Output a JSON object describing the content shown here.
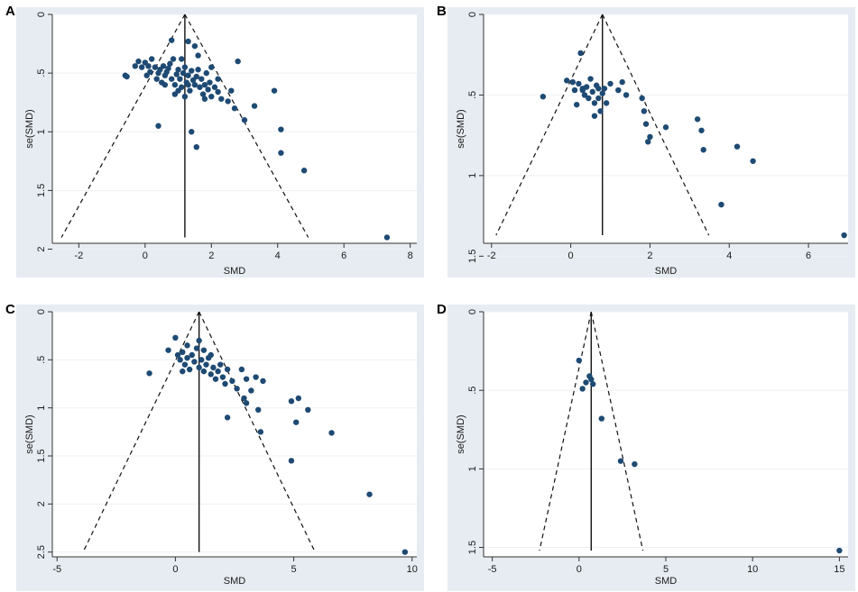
{
  "chart_data": [
    {
      "type": "scatter",
      "panel": "A",
      "xlabel": "SMD",
      "ylabel": "se(SMD)",
      "xlim": [
        -2.8,
        8.2
      ],
      "ylim": [
        0,
        1.95
      ],
      "y_reversed": true,
      "xticks": [
        -2,
        0,
        2,
        4,
        6,
        8
      ],
      "yticks": [
        0,
        0.5,
        1,
        1.5,
        2
      ],
      "ytick_labels": [
        "0",
        ".5",
        "1",
        "1.5",
        "2"
      ],
      "pooled_estimate": 1.2,
      "funnel_max_se": 1.9,
      "points": [
        [
          -0.6,
          0.52
        ],
        [
          -0.55,
          0.53
        ],
        [
          -0.3,
          0.44
        ],
        [
          -0.2,
          0.4
        ],
        [
          -0.1,
          0.45
        ],
        [
          0.0,
          0.41
        ],
        [
          0.05,
          0.52
        ],
        [
          0.1,
          0.44
        ],
        [
          0.15,
          0.49
        ],
        [
          0.2,
          0.38
        ],
        [
          0.3,
          0.45
        ],
        [
          0.35,
          0.55
        ],
        [
          0.4,
          0.5
        ],
        [
          0.45,
          0.47
        ],
        [
          0.5,
          0.58
        ],
        [
          0.55,
          0.44
        ],
        [
          0.6,
          0.52
        ],
        [
          0.65,
          0.49
        ],
        [
          0.7,
          0.46
        ],
        [
          0.75,
          0.42
        ],
        [
          0.8,
          0.55
        ],
        [
          0.85,
          0.38
        ],
        [
          0.9,
          0.6
        ],
        [
          0.95,
          0.51
        ],
        [
          1.0,
          0.47
        ],
        [
          1.05,
          0.55
        ],
        [
          1.1,
          0.62
        ],
        [
          1.15,
          0.5
        ],
        [
          1.2,
          0.45
        ],
        [
          1.25,
          0.58
        ],
        [
          1.3,
          0.52
        ],
        [
          1.35,
          0.65
        ],
        [
          1.4,
          0.48
        ],
        [
          1.45,
          0.56
        ],
        [
          1.5,
          0.6
        ],
        [
          1.55,
          0.53
        ],
        [
          1.6,
          0.47
        ],
        [
          1.65,
          0.62
        ],
        [
          1.7,
          0.55
        ],
        [
          1.75,
          0.68
        ],
        [
          1.8,
          0.6
        ],
        [
          1.85,
          0.5
        ],
        [
          1.9,
          0.64
        ],
        [
          1.95,
          0.58
        ],
        [
          2.0,
          0.7
        ],
        [
          2.1,
          0.62
        ],
        [
          2.2,
          0.66
        ],
        [
          2.3,
          0.72
        ],
        [
          2.5,
          0.74
        ],
        [
          2.7,
          0.8
        ],
        [
          3.0,
          0.9
        ],
        [
          3.3,
          0.78
        ],
        [
          3.9,
          0.65
        ],
        [
          4.1,
          0.98
        ],
        [
          4.1,
          1.18
        ],
        [
          4.8,
          1.33
        ],
        [
          7.3,
          1.9
        ],
        [
          0.8,
          0.22
        ],
        [
          1.3,
          0.23
        ],
        [
          1.5,
          0.27
        ],
        [
          2.8,
          0.4
        ],
        [
          1.4,
          1.0
        ],
        [
          1.55,
          1.13
        ],
        [
          0.4,
          0.95
        ],
        [
          1.0,
          0.65
        ],
        [
          0.6,
          0.6
        ],
        [
          1.2,
          0.7
        ],
        [
          1.8,
          0.72
        ],
        [
          2.2,
          0.55
        ],
        [
          2.6,
          0.65
        ],
        [
          1.1,
          0.38
        ],
        [
          1.6,
          0.35
        ],
        [
          2.0,
          0.45
        ],
        [
          0.9,
          0.68
        ],
        [
          1.3,
          0.6
        ]
      ]
    },
    {
      "type": "scatter",
      "panel": "B",
      "xlabel": "SMD",
      "ylabel": "se(SMD)",
      "xlim": [
        -2.2,
        7.0
      ],
      "ylim": [
        0,
        1.42
      ],
      "y_reversed": true,
      "xticks": [
        -2,
        0,
        2,
        4,
        6
      ],
      "yticks": [
        0,
        0.5,
        1,
        1.5
      ],
      "ytick_labels": [
        "0",
        ".5",
        "1",
        "1.5"
      ],
      "pooled_estimate": 0.8,
      "funnel_max_se": 1.37,
      "points": [
        [
          -0.7,
          0.51
        ],
        [
          -0.1,
          0.41
        ],
        [
          0.05,
          0.42
        ],
        [
          0.1,
          0.47
        ],
        [
          0.2,
          0.43
        ],
        [
          0.25,
          0.24
        ],
        [
          0.3,
          0.46
        ],
        [
          0.35,
          0.5
        ],
        [
          0.4,
          0.45
        ],
        [
          0.45,
          0.52
        ],
        [
          0.5,
          0.4
        ],
        [
          0.55,
          0.48
        ],
        [
          0.6,
          0.55
        ],
        [
          0.65,
          0.44
        ],
        [
          0.7,
          0.52
        ],
        [
          0.75,
          0.6
        ],
        [
          0.8,
          0.49
        ],
        [
          0.85,
          0.46
        ],
        [
          0.9,
          0.55
        ],
        [
          1.0,
          0.43
        ],
        [
          1.2,
          0.47
        ],
        [
          1.3,
          0.42
        ],
        [
          1.4,
          0.5
        ],
        [
          1.8,
          0.52
        ],
        [
          1.85,
          0.6
        ],
        [
          1.9,
          0.68
        ],
        [
          1.95,
          0.79
        ],
        [
          2.0,
          0.76
        ],
        [
          2.4,
          0.7
        ],
        [
          3.2,
          0.65
        ],
        [
          3.3,
          0.72
        ],
        [
          3.35,
          0.84
        ],
        [
          4.2,
          0.82
        ],
        [
          4.6,
          0.91
        ],
        [
          3.8,
          1.18
        ],
        [
          6.9,
          1.37
        ],
        [
          0.15,
          0.56
        ],
        [
          0.6,
          0.63
        ],
        [
          0.3,
          0.47
        ],
        [
          0.7,
          0.46
        ]
      ]
    },
    {
      "type": "scatter",
      "panel": "C",
      "xlabel": "SMD",
      "ylabel": "se(SMD)",
      "xlim": [
        -5.2,
        10.2
      ],
      "ylim": [
        0,
        2.55
      ],
      "y_reversed": true,
      "xticks": [
        -5,
        0,
        5,
        10
      ],
      "yticks": [
        0,
        0.5,
        1,
        1.5,
        2,
        2.5
      ],
      "ytick_labels": [
        "0",
        ".5",
        "1",
        "1.5",
        "2",
        "2.5"
      ],
      "pooled_estimate": 1.0,
      "funnel_max_se": 2.5,
      "points": [
        [
          -1.1,
          0.64
        ],
        [
          -0.3,
          0.4
        ],
        [
          0.0,
          0.27
        ],
        [
          0.1,
          0.45
        ],
        [
          0.2,
          0.5
        ],
        [
          0.3,
          0.42
        ],
        [
          0.4,
          0.55
        ],
        [
          0.5,
          0.48
        ],
        [
          0.6,
          0.6
        ],
        [
          0.7,
          0.45
        ],
        [
          0.8,
          0.52
        ],
        [
          0.9,
          0.38
        ],
        [
          1.0,
          0.58
        ],
        [
          1.1,
          0.5
        ],
        [
          1.2,
          0.62
        ],
        [
          1.3,
          0.55
        ],
        [
          1.4,
          0.48
        ],
        [
          1.5,
          0.65
        ],
        [
          1.6,
          0.58
        ],
        [
          1.7,
          0.7
        ],
        [
          1.8,
          0.62
        ],
        [
          1.9,
          0.55
        ],
        [
          2.0,
          0.68
        ],
        [
          2.1,
          0.75
        ],
        [
          2.2,
          0.6
        ],
        [
          2.4,
          0.72
        ],
        [
          2.6,
          0.8
        ],
        [
          2.8,
          0.6
        ],
        [
          2.9,
          0.9
        ],
        [
          3.0,
          0.7
        ],
        [
          3.2,
          0.82
        ],
        [
          3.4,
          0.68
        ],
        [
          3.5,
          1.02
        ],
        [
          3.6,
          1.25
        ],
        [
          3.7,
          0.72
        ],
        [
          4.9,
          0.93
        ],
        [
          5.1,
          1.15
        ],
        [
          5.2,
          0.9
        ],
        [
          5.6,
          1.02
        ],
        [
          6.6,
          1.26
        ],
        [
          4.9,
          1.55
        ],
        [
          8.2,
          1.9
        ],
        [
          9.7,
          2.5
        ],
        [
          1.0,
          0.3
        ],
        [
          1.2,
          0.4
        ],
        [
          0.5,
          0.35
        ],
        [
          2.2,
          1.1
        ],
        [
          3.0,
          0.95
        ],
        [
          1.5,
          0.45
        ],
        [
          0.3,
          0.62
        ]
      ]
    },
    {
      "type": "scatter",
      "panel": "D",
      "xlabel": "SMD",
      "ylabel": "se(SMD)",
      "xlim": [
        -5.5,
        15.5
      ],
      "ylim": [
        0,
        1.56
      ],
      "y_reversed": true,
      "xticks": [
        -5,
        0,
        5,
        10,
        15
      ],
      "yticks": [
        0,
        0.5,
        1,
        1.5
      ],
      "ytick_labels": [
        "0",
        ".5",
        "1",
        "1.5"
      ],
      "pooled_estimate": 0.7,
      "funnel_max_se": 1.52,
      "points": [
        [
          0.0,
          0.31
        ],
        [
          0.2,
          0.49
        ],
        [
          0.4,
          0.45
        ],
        [
          0.6,
          0.41
        ],
        [
          0.7,
          0.43
        ],
        [
          0.8,
          0.46
        ],
        [
          1.3,
          0.68
        ],
        [
          2.4,
          0.95
        ],
        [
          3.2,
          0.97
        ],
        [
          15.0,
          1.52
        ]
      ]
    }
  ],
  "panels": [
    {
      "label": "A"
    },
    {
      "label": "B"
    },
    {
      "label": "C"
    },
    {
      "label": "D"
    }
  ]
}
